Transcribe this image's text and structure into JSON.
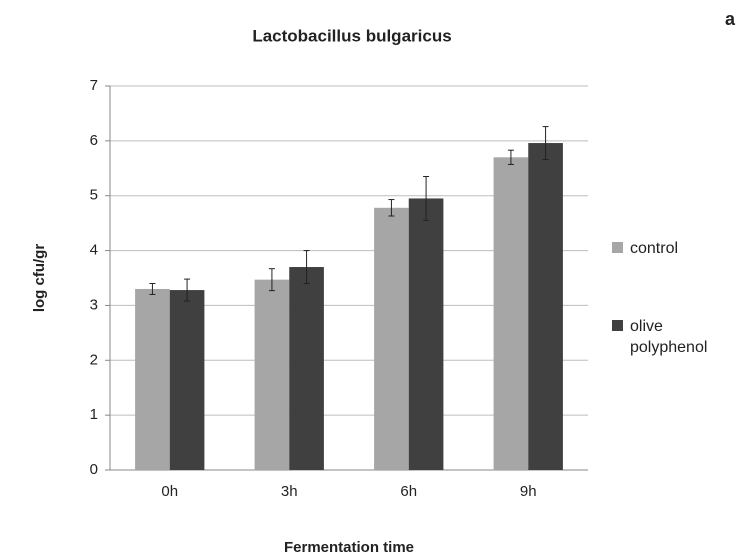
{
  "chart_data": {
    "type": "bar",
    "title": "Lactobacillus bulgaricus",
    "panel_label": "a",
    "x_label": "Fermentation time",
    "y_label": "log cfu/gr",
    "categories": [
      "0h",
      "3h",
      "6h",
      "9h"
    ],
    "series": [
      {
        "name": "control",
        "color": "#a6a6a6",
        "values": [
          3.3,
          3.47,
          4.78,
          5.7
        ],
        "errors": [
          0.1,
          0.2,
          0.15,
          0.13
        ]
      },
      {
        "name": "olive polyphenol",
        "color": "#404040",
        "values": [
          3.28,
          3.7,
          4.95,
          5.96
        ],
        "errors": [
          0.2,
          0.3,
          0.4,
          0.3
        ]
      }
    ],
    "ylim": [
      0,
      7
    ],
    "yticks": [
      0,
      1,
      2,
      3,
      4,
      5,
      6,
      7
    ],
    "grid": true,
    "legend": "right"
  }
}
